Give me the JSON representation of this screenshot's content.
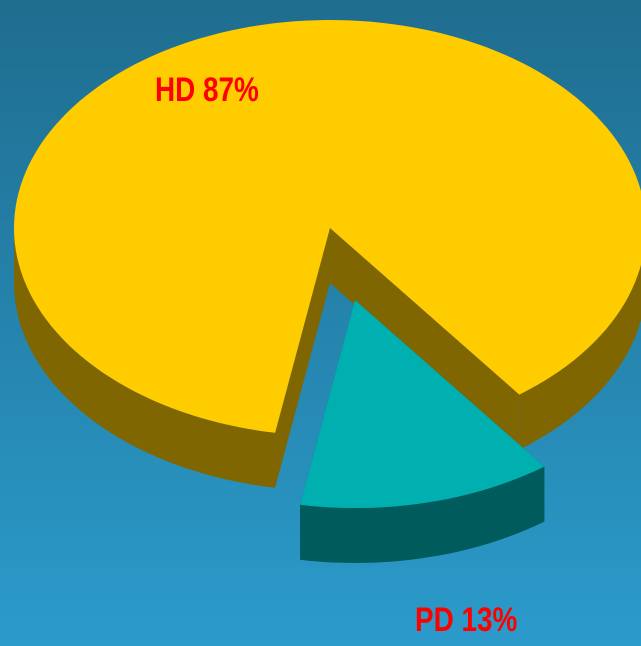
{
  "chart_data": {
    "type": "pie",
    "values": [
      87,
      13
    ],
    "value_labels": [
      "HD 87%",
      "PD 13%"
    ],
    "colors": [
      "#ffcc00",
      "#00b0b0"
    ],
    "side_colors": [
      "#806600",
      "#005c5c"
    ],
    "label_color": "#ff0000",
    "exploded": [
      false,
      true
    ]
  }
}
